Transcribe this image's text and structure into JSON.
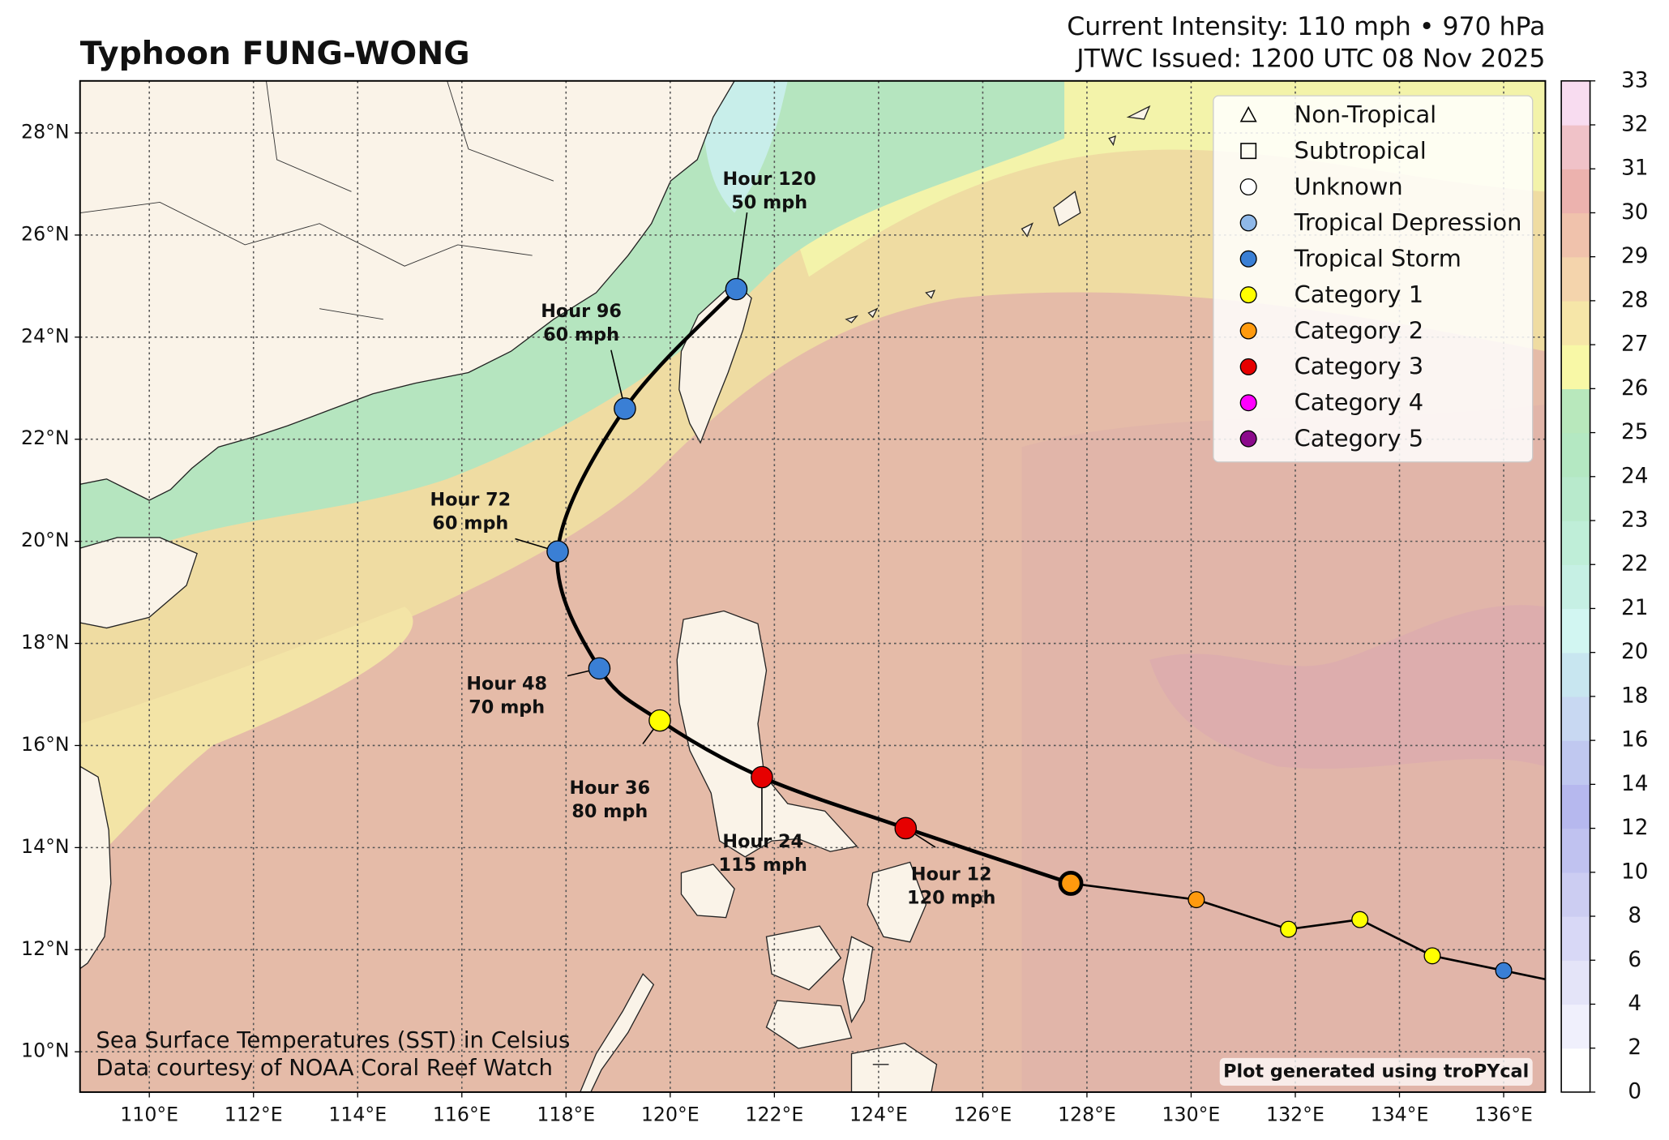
{
  "header": {
    "title": "Typhoon FUNG-WONG",
    "intensity": "Current Intensity: 110 mph • 970 hPa",
    "issued": "JTWC Issued: 1200 UTC 08 Nov 2025"
  },
  "map": {
    "lonlim": [
      108.67,
      136.8
    ],
    "latlim": [
      9.21,
      29.02
    ],
    "lonticks": [
      {
        "value": 110,
        "label": "110°E"
      },
      {
        "value": 112,
        "label": "112°E"
      },
      {
        "value": 114,
        "label": "114°E"
      },
      {
        "value": 116,
        "label": "116°E"
      },
      {
        "value": 118,
        "label": "118°E"
      },
      {
        "value": 120,
        "label": "120°E"
      },
      {
        "value": 122,
        "label": "122°E"
      },
      {
        "value": 124,
        "label": "124°E"
      },
      {
        "value": 126,
        "label": "126°E"
      },
      {
        "value": 128,
        "label": "128°E"
      },
      {
        "value": 130,
        "label": "130°E"
      },
      {
        "value": 132,
        "label": "132°E"
      },
      {
        "value": 134,
        "label": "134°E"
      },
      {
        "value": 136,
        "label": "136°E"
      }
    ],
    "latticks": [
      {
        "value": 10,
        "label": "10°N"
      },
      {
        "value": 12,
        "label": "12°N"
      },
      {
        "value": 14,
        "label": "14°N"
      },
      {
        "value": 16,
        "label": "16°N"
      },
      {
        "value": 18,
        "label": "18°N"
      },
      {
        "value": 20,
        "label": "20°N"
      },
      {
        "value": 22,
        "label": "22°N"
      },
      {
        "value": 24,
        "label": "24°N"
      },
      {
        "value": 26,
        "label": "26°N"
      },
      {
        "value": 28,
        "label": "28°N"
      }
    ],
    "grid": true
  },
  "track": {
    "past": [
      {
        "lon": 136.0,
        "lat": 11.59,
        "color": "#3a7fd5"
      },
      {
        "lon": 134.63,
        "lat": 11.88,
        "color": "#ffff00"
      },
      {
        "lon": 133.24,
        "lat": 12.59,
        "color": "#ffff00"
      },
      {
        "lon": 131.87,
        "lat": 12.4,
        "color": "#ffff00"
      },
      {
        "lon": 130.1,
        "lat": 12.98,
        "color": "#ff9a0e"
      }
    ],
    "current": {
      "lon": 127.69,
      "lat": 13.3,
      "color": "#ff9a0e"
    },
    "forecast": [
      {
        "hour": "Hour 12",
        "wind": "120 mph",
        "lon": 124.52,
        "lat": 14.38,
        "color": "#e60000"
      },
      {
        "hour": "Hour 24",
        "wind": "115 mph",
        "lon": 121.76,
        "lat": 15.38,
        "color": "#e60000"
      },
      {
        "hour": "Hour 36",
        "wind": "80 mph",
        "lon": 119.8,
        "lat": 16.49,
        "color": "#ffff00"
      },
      {
        "hour": "Hour 48",
        "wind": "70 mph",
        "lon": 118.64,
        "lat": 17.51,
        "color": "#3a7fd5"
      },
      {
        "hour": "Hour 72",
        "wind": "60 mph",
        "lon": 117.84,
        "lat": 19.8,
        "color": "#3a7fd5"
      },
      {
        "hour": "Hour 96",
        "wind": "60 mph",
        "lon": 119.13,
        "lat": 22.6,
        "color": "#3a7fd5"
      },
      {
        "hour": "Hour 120",
        "wind": "50 mph",
        "lon": 121.27,
        "lat": 24.94,
        "color": "#3a7fd5"
      }
    ]
  },
  "legend": [
    {
      "label": "Non-Tropical",
      "marker": "triangle",
      "color": "none"
    },
    {
      "label": "Subtropical",
      "marker": "square",
      "color": "none"
    },
    {
      "label": "Unknown",
      "marker": "circle",
      "color": "none"
    },
    {
      "label": "Tropical Depression",
      "marker": "circle",
      "color": "#8fb8e8"
    },
    {
      "label": "Tropical Storm",
      "marker": "circle",
      "color": "#3a7fd5"
    },
    {
      "label": "Category 1",
      "marker": "circle",
      "color": "#ffff00"
    },
    {
      "label": "Category 2",
      "marker": "circle",
      "color": "#ff9a0e"
    },
    {
      "label": "Category 3",
      "marker": "circle",
      "color": "#e60000"
    },
    {
      "label": "Category 4",
      "marker": "circle",
      "color": "#ff00ff"
    },
    {
      "label": "Category 5",
      "marker": "circle",
      "color": "#8b0a8b"
    }
  ],
  "colorbar": {
    "ticks": [
      0,
      2,
      4,
      6,
      8,
      10,
      12,
      14,
      16,
      18,
      20,
      21,
      22,
      23,
      24,
      25,
      26,
      27,
      28,
      29,
      30,
      31,
      32,
      33
    ]
  },
  "notes": {
    "sst": "Sea Surface Temperatures (SST) in Celsius",
    "credit": "Data courtesy of NOAA Coral Reef Watch",
    "generated": "Plot generated using troPYcal"
  }
}
